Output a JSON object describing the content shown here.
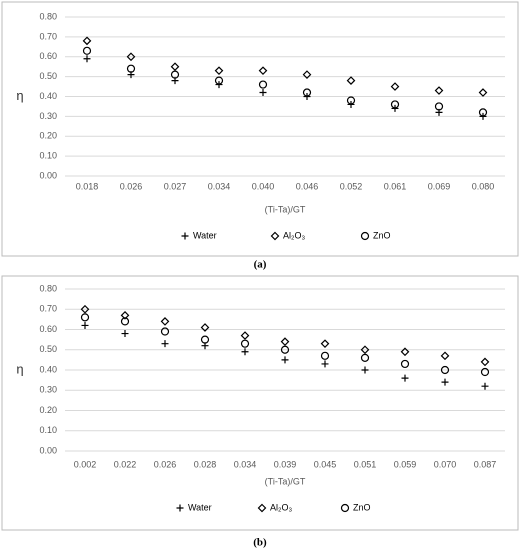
{
  "chart_data": [
    {
      "type": "scatter",
      "label": "(a)",
      "y_label": "η",
      "x_label": "(Ti-Ta)/GT",
      "categories": [
        "0.018",
        "0.026",
        "0.027",
        "0.034",
        "0.040",
        "0.046",
        "0.052",
        "0.061",
        "0.069",
        "0.080"
      ],
      "series": [
        {
          "name": "Water",
          "color": "#000000",
          "marker": "plus",
          "values": [
            0.59,
            0.51,
            0.48,
            0.46,
            0.42,
            0.4,
            0.36,
            0.34,
            0.32,
            0.3
          ]
        },
        {
          "name": "Al₂O₃",
          "color": "#000000",
          "marker": "diamond",
          "values": [
            0.68,
            0.6,
            0.55,
            0.53,
            0.53,
            0.51,
            0.48,
            0.45,
            0.43,
            0.42
          ]
        },
        {
          "name": "ZnO",
          "color": "#000000",
          "marker": "circle",
          "values": [
            0.63,
            0.54,
            0.51,
            0.48,
            0.46,
            0.42,
            0.38,
            0.36,
            0.35,
            0.32
          ]
        }
      ],
      "ylim": [
        0,
        0.8
      ],
      "yticks": [
        {
          "value": 0,
          "label": "0.00"
        },
        {
          "value": 0.1,
          "label": "0.10"
        },
        {
          "value": 0.2,
          "label": "0.20"
        },
        {
          "value": 0.3,
          "label": "0.30"
        },
        {
          "value": 0.4,
          "label": "0.40"
        },
        {
          "value": 0.5,
          "label": "0.50"
        },
        {
          "value": 0.6,
          "label": "0.60"
        },
        {
          "value": 0.7,
          "label": "0.70"
        },
        {
          "value": 0.8,
          "label": "0.80"
        }
      ],
      "grid": true,
      "legend": "bottom"
    },
    {
      "type": "scatter",
      "label": "(b)",
      "y_label": "η",
      "x_label": "(Ti-Ta)/GT",
      "categories": [
        "0.002",
        "0.022",
        "0.026",
        "0.028",
        "0.034",
        "0.039",
        "0.045",
        "0.051",
        "0.059",
        "0.070",
        "0.087"
      ],
      "series": [
        {
          "name": "Water",
          "color": "#000000",
          "marker": "plus",
          "values": [
            0.62,
            0.58,
            0.53,
            0.52,
            0.49,
            0.45,
            0.43,
            0.4,
            0.36,
            0.34,
            0.32
          ]
        },
        {
          "name": "Al₂O₃",
          "color": "#000000",
          "marker": "diamond",
          "values": [
            0.7,
            0.67,
            0.64,
            0.61,
            0.57,
            0.54,
            0.53,
            0.5,
            0.49,
            0.47,
            0.44
          ]
        },
        {
          "name": "ZnO",
          "color": "#000000",
          "marker": "circle",
          "values": [
            0.66,
            0.64,
            0.59,
            0.55,
            0.53,
            0.5,
            0.47,
            0.46,
            0.43,
            0.4,
            0.39
          ]
        }
      ],
      "ylim": [
        0,
        0.8
      ],
      "yticks": [
        {
          "value": 0,
          "label": "0.00"
        },
        {
          "value": 0.1,
          "label": "0.10"
        },
        {
          "value": 0.2,
          "label": "0.20"
        },
        {
          "value": 0.3,
          "label": "0.30"
        },
        {
          "value": 0.4,
          "label": "0.40"
        },
        {
          "value": 0.5,
          "label": "0.50"
        },
        {
          "value": 0.6,
          "label": "0.60"
        },
        {
          "value": 0.7,
          "label": "0.70"
        },
        {
          "value": 0.8,
          "label": "0.80"
        }
      ],
      "grid": true,
      "legend": "bottom"
    }
  ]
}
